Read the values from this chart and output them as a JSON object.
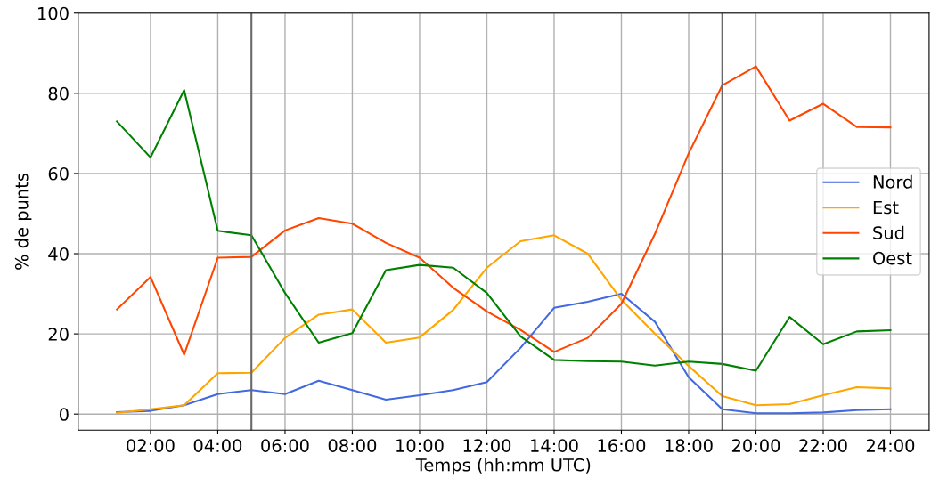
{
  "chart_data": {
    "type": "line",
    "xlabel": "Temps (hh:mm UTC)",
    "ylabel": "% de punts",
    "x": [
      1,
      2,
      3,
      4,
      5,
      6,
      7,
      8,
      9,
      10,
      11,
      12,
      13,
      14,
      15,
      16,
      17,
      18,
      19,
      20,
      21,
      22,
      23,
      24
    ],
    "series": [
      {
        "name": "Nord",
        "color": "#4169e1",
        "values": [
          0.5,
          0.8,
          2.2,
          5,
          6,
          5,
          8.3,
          6,
          3.6,
          4.7,
          6,
          8,
          16.5,
          26.5,
          28,
          30,
          23,
          9.2,
          1.2,
          0.2,
          0.2,
          0.4,
          1,
          1.2
        ]
      },
      {
        "name": "Est",
        "color": "#ffa500",
        "values": [
          0.3,
          1.2,
          2.2,
          10.2,
          10.3,
          19,
          24.8,
          26.1,
          17.8,
          19.1,
          26,
          36.5,
          43.1,
          44.6,
          40,
          28.5,
          20,
          12,
          4.5,
          2.2,
          2.5,
          4.7,
          6.7,
          6.4
        ]
      },
      {
        "name": "Sud",
        "color": "#ff4500",
        "values": [
          26.1,
          34.2,
          14.8,
          39,
          39.2,
          45.8,
          48.9,
          47.5,
          42.7,
          39,
          31.5,
          25.6,
          21,
          15.5,
          19,
          27.5,
          45,
          65,
          82,
          86.7,
          73.2,
          77.4,
          71.6,
          71.5
        ]
      },
      {
        "name": "Oest",
        "color": "#008000",
        "values": [
          73,
          64,
          80.8,
          45.7,
          44.6,
          30.2,
          17.8,
          20.2,
          35.9,
          37.2,
          36.5,
          30.2,
          19.4,
          13.5,
          13.2,
          13.1,
          12.1,
          13.1,
          12.5,
          10.8,
          24.2,
          17.4,
          20.6,
          20.9
        ]
      }
    ],
    "xlim": [
      -0.15,
      25.15
    ],
    "ylim": [
      -4,
      100
    ],
    "xticks": [
      {
        "value": 2,
        "label": "02:00"
      },
      {
        "value": 4,
        "label": "04:00"
      },
      {
        "value": 6,
        "label": "06:00"
      },
      {
        "value": 8,
        "label": "08:00"
      },
      {
        "value": 10,
        "label": "10:00"
      },
      {
        "value": 12,
        "label": "12:00"
      },
      {
        "value": 14,
        "label": "14:00"
      },
      {
        "value": 16,
        "label": "16:00"
      },
      {
        "value": 18,
        "label": "18:00"
      },
      {
        "value": 20,
        "label": "20:00"
      },
      {
        "value": 22,
        "label": "22:00"
      },
      {
        "value": 24,
        "label": "24:00"
      }
    ],
    "yticks": [
      0,
      20,
      40,
      60,
      80,
      100
    ],
    "ref_lines": [
      {
        "axis": "x",
        "value": 5,
        "color": "#696969"
      },
      {
        "axis": "x",
        "value": 19,
        "color": "#696969"
      }
    ],
    "grid": true,
    "legend": "right",
    "line_style": "solid"
  }
}
